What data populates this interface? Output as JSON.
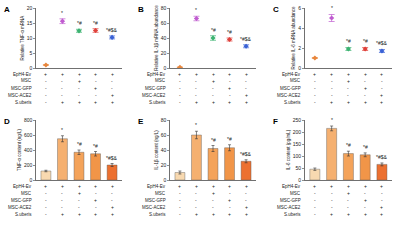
{
  "chart_data": [
    {
      "panel": "A",
      "type": "scatter",
      "marker": "diamond",
      "y_label": "Relative TNF-α mRNA",
      "categories": [
        null,
        null,
        null,
        null,
        null
      ],
      "values": [
        1,
        15.6,
        12.4,
        12.5,
        10.2
      ],
      "errors": [
        0.1,
        0.8,
        0.5,
        0.6,
        0.5
      ],
      "significance": [
        null,
        "*",
        "*#",
        "*#",
        "*#$&"
      ],
      "colors": [
        "#e8863c",
        "#c05bd0",
        "#3cb371",
        "#e0403a",
        "#3a62d6"
      ],
      "ylim": [
        0,
        20
      ],
      "yticks": [
        0,
        5,
        10,
        15,
        20
      ]
    },
    {
      "panel": "B",
      "type": "scatter",
      "marker": "diamond",
      "y_label": "Relative IL-1β mRNA abundance",
      "categories": [
        null,
        null,
        null,
        null,
        null
      ],
      "values": [
        1,
        66,
        40,
        38,
        29
      ],
      "errors": [
        0.1,
        3,
        3,
        2,
        2
      ],
      "significance": [
        null,
        "*",
        "*#",
        "*#",
        "*#$&"
      ],
      "colors": [
        "#e8863c",
        "#c05bd0",
        "#3cb371",
        "#e0403a",
        "#3a62d6"
      ],
      "ylim": [
        0,
        80
      ],
      "yticks": [
        0,
        20,
        40,
        60,
        80
      ]
    },
    {
      "panel": "C",
      "type": "scatter",
      "marker": "diamond",
      "y_label": "Relative IL-6 mRNA abundance",
      "categories": [
        null,
        null,
        null,
        null,
        null
      ],
      "values": [
        1,
        5.0,
        1.9,
        1.9,
        1.7
      ],
      "errors": [
        0.05,
        0.35,
        0.15,
        0.15,
        0.15
      ],
      "significance": [
        null,
        "*",
        "*#",
        "*#",
        "*#$&"
      ],
      "colors": [
        "#e8863c",
        "#c05bd0",
        "#3cb371",
        "#e0403a",
        "#3a62d6"
      ],
      "ylim": [
        0,
        6
      ],
      "yticks": [
        0,
        2,
        4,
        6
      ]
    },
    {
      "panel": "D",
      "type": "bar",
      "y_label": "TNF-α content (ng/L)",
      "categories": [
        null,
        null,
        null,
        null,
        null
      ],
      "values": [
        120,
        550,
        370,
        350,
        200
      ],
      "errors": [
        10,
        40,
        30,
        30,
        20
      ],
      "significance": [
        null,
        "*",
        "*#",
        "*#",
        "*#$&"
      ],
      "colors": [
        "#f8d9b0",
        "#f5b070",
        "#f4a35a",
        "#f19548",
        "#ec7030"
      ],
      "ylim": [
        0,
        800
      ],
      "yticks": [
        0,
        200,
        400,
        600,
        800
      ]
    },
    {
      "panel": "E",
      "type": "bar",
      "y_label": "IL-1β content (ng/L)",
      "categories": [
        null,
        null,
        null,
        null,
        null
      ],
      "values": [
        10,
        60,
        42,
        43,
        25
      ],
      "errors": [
        2,
        5,
        4,
        4,
        2
      ],
      "significance": [
        null,
        "*",
        "*#",
        "*#",
        "*#$&"
      ],
      "colors": [
        "#f8d9b0",
        "#f5b070",
        "#f4a35a",
        "#f19548",
        "#ec7030"
      ],
      "ylim": [
        0,
        80
      ],
      "yticks": [
        0,
        20,
        40,
        60,
        80
      ]
    },
    {
      "panel": "F",
      "type": "bar",
      "y_label": "IL-6 content (pg/mL)",
      "categories": [
        null,
        null,
        null,
        null,
        null
      ],
      "values": [
        45,
        215,
        110,
        105,
        65
      ],
      "errors": [
        5,
        10,
        10,
        8,
        6
      ],
      "significance": [
        null,
        "*",
        "*#",
        "*#",
        "*#$&"
      ],
      "colors": [
        "#f8d9b0",
        "#f5b070",
        "#f4a35a",
        "#f19548",
        "#ec7030"
      ],
      "ylim": [
        0,
        250
      ],
      "yticks": [
        0,
        50,
        100,
        150,
        200,
        250
      ]
    }
  ],
  "conditions": {
    "rows": [
      {
        "label": "EpH4-Ev",
        "marks": [
          "+",
          "+",
          "+",
          "+",
          "+"
        ]
      },
      {
        "label": "MSC",
        "marks": [
          "-",
          "-",
          "+",
          "-",
          "-"
        ]
      },
      {
        "label": "MSC-GFP",
        "marks": [
          "-",
          "-",
          "-",
          "+",
          "-"
        ]
      },
      {
        "label": "MSC-ACE2",
        "marks": [
          "-",
          "-",
          "-",
          "-",
          "+"
        ]
      },
      {
        "label": "S.uberis",
        "marks": [
          "-",
          "+",
          "+",
          "+",
          "+"
        ]
      }
    ]
  }
}
